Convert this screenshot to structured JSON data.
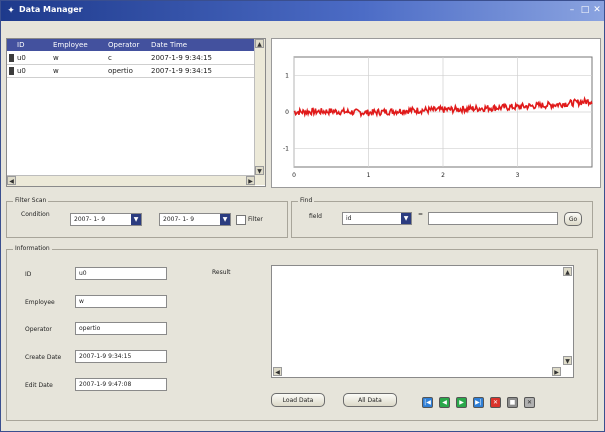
{
  "window": {
    "title": "Data Manager"
  },
  "grid": {
    "columns": [
      "ID",
      "Employee",
      "Operator",
      "Date Time"
    ],
    "rows": [
      [
        "u0",
        "w",
        "c",
        "2007-1-9 9:34:15"
      ],
      [
        "u0",
        "w",
        "opertio",
        "2007-1-9 9:34:15"
      ]
    ]
  },
  "chart_data": {
    "type": "line",
    "title": "",
    "xlabel": "",
    "ylabel": "",
    "xlim": [
      0,
      4
    ],
    "ylim": [
      -1.5,
      1.5
    ],
    "x_ticks": [
      "0",
      "1",
      "2",
      "3"
    ],
    "y_ticks": [
      "1",
      "0",
      "-1"
    ],
    "series": [
      {
        "color": "#e01a1a",
        "x": [
          0,
          0.5,
          1,
          1.5,
          2,
          2.5,
          3,
          3.5,
          4
        ],
        "y": [
          0,
          0.02,
          -0.02,
          0.04,
          0.06,
          0.1,
          0.14,
          0.2,
          0.3
        ]
      }
    ],
    "grid": true
  },
  "filter": {
    "label": "Filter Scan",
    "condition_label": "Condition",
    "date_from": "2007- 1- 9",
    "date_to": "2007- 1- 9",
    "filter_checkbox_label": "Filter"
  },
  "find": {
    "label": "Find",
    "field_label": "field",
    "field_value": "id",
    "equals_label": "=",
    "value": "",
    "button_label": "Go"
  },
  "information": {
    "label": "Information",
    "fields": [
      {
        "label": "ID",
        "value": "u0"
      },
      {
        "label": "Employee",
        "value": "w"
      },
      {
        "label": "Operator",
        "value": "opertio"
      },
      {
        "label": "Create Date",
        "value": "2007-1-9 9:34:15"
      },
      {
        "label": "Edit Date",
        "value": "2007-1-9 9:47:08"
      }
    ],
    "result_label": "Result",
    "load_button": "Load Data",
    "all_button": "All Data"
  },
  "nav_buttons": [
    {
      "name": "first",
      "glyph": "|◀",
      "color": "#2f7fd6"
    },
    {
      "name": "prev",
      "glyph": "◀",
      "color": "#2aa84a"
    },
    {
      "name": "next",
      "glyph": "▶",
      "color": "#2aa84a"
    },
    {
      "name": "last",
      "glyph": "▶|",
      "color": "#2f7fd6"
    },
    {
      "name": "delete",
      "glyph": "✕",
      "color": "#d9332b"
    },
    {
      "name": "save",
      "glyph": "■",
      "color": "#8d8d8d"
    },
    {
      "name": "close",
      "glyph": "✕",
      "color": "#9a9a9a"
    }
  ]
}
